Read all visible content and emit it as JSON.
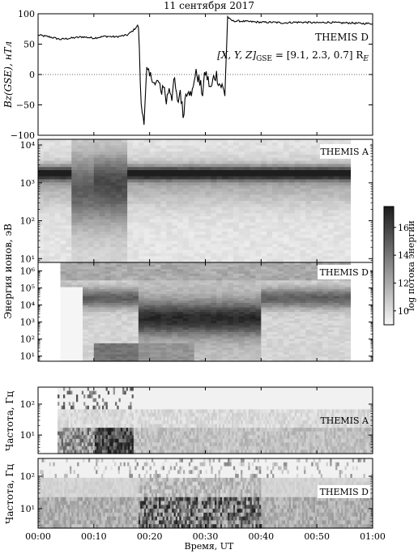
{
  "chart_data": [
    {
      "type": "line",
      "panel": "a",
      "title": "11 сентября 2017",
      "ylabel": "Bz(GSE), нТл",
      "ylim": [
        -100,
        100
      ],
      "y_ticks": [
        "100",
        "50",
        "0",
        "−50",
        "−100"
      ],
      "y_tick_values": [
        100,
        50,
        0,
        -50,
        -100
      ],
      "annotation": "THEMIS D",
      "annotation2_main": "[X, Y, Z]",
      "annotation2_sub": "GSE",
      "annotation2_rest": " = [9.1, 2.3, 0.7] R",
      "annotation2_sub2": "E",
      "zero_line": "dotted",
      "series": [
        {
          "x_minutes": [
            0,
            2,
            4,
            6,
            8,
            10,
            12,
            14,
            16,
            17,
            18,
            18.5,
            19,
            19.5,
            20,
            20.5,
            21,
            21.5,
            22,
            22.5,
            23,
            23.5,
            24,
            24.5,
            25,
            25.5,
            26,
            26.5,
            27,
            27.5,
            28,
            28.5,
            29,
            29.5,
            30,
            30.5,
            31,
            31.5,
            32,
            32.5,
            33,
            33.5,
            34,
            34.5,
            35,
            36,
            38,
            40,
            42,
            44,
            46,
            48,
            50,
            52,
            54,
            56,
            58,
            60
          ],
          "values": [
            65,
            62,
            58,
            60,
            62,
            60,
            63,
            62,
            65,
            72,
            82,
            -55,
            -72,
            5,
            -5,
            -2,
            -20,
            -10,
            -30,
            -15,
            -45,
            -20,
            -35,
            -10,
            -50,
            -25,
            -68,
            -30,
            -20,
            -40,
            -5,
            2,
            -15,
            -30,
            5,
            -10,
            -25,
            -5,
            0,
            -15,
            -20,
            -32,
            95,
            90,
            88,
            88,
            87,
            86,
            86,
            85,
            86,
            86,
            85,
            86,
            85,
            85,
            84,
            84
          ]
        }
      ]
    },
    {
      "type": "heatmap",
      "panel": "b",
      "ylabel": "Энергия ионов, эВ",
      "y_scale": "log",
      "annotation": "THEMIS A",
      "y_ticks": [
        "10⁴",
        "10³",
        "10²",
        "10¹"
      ],
      "y_tick_exponents": [
        4,
        3,
        2,
        1
      ],
      "x_range_minutes": [
        0,
        56
      ],
      "description_values": {
        "peak_energy_eV": 1700,
        "broad_interval_minutes": [
          6,
          16
        ]
      }
    },
    {
      "type": "heatmap",
      "panel": "c",
      "annotation": "THEMIS D",
      "y_scale": "log",
      "y_ticks": [
        "10⁶",
        "10⁵",
        "10⁴",
        "10³",
        "10²",
        "10¹"
      ],
      "y_tick_exponents": [
        6,
        5,
        4,
        3,
        2,
        1
      ],
      "x_range_minutes": [
        4,
        56
      ],
      "description_values": {
        "enhanced_interval_minutes": [
          18,
          40
        ]
      }
    },
    {
      "type": "heatmap",
      "panel": "d",
      "ylabel": "Частота, Гц",
      "y_scale": "log",
      "annotation": "THEMIS A",
      "y_ticks": [
        "10²",
        "10¹"
      ],
      "y_tick_exponents": [
        2,
        1
      ]
    },
    {
      "type": "heatmap",
      "panel": "e",
      "ylabel": "Частота, Гц",
      "y_scale": "log",
      "annotation": "THEMIS D",
      "y_ticks": [
        "10²",
        "10¹"
      ],
      "y_tick_exponents": [
        2,
        1
      ],
      "xlabel": "Время, UT",
      "x_ticks": [
        "00:00",
        "00:10",
        "00:20",
        "00:30",
        "00:40",
        "00:50",
        "01:00"
      ]
    }
  ],
  "colorbar": {
    "label": "log потока энергии",
    "ticks": [
      "16",
      "14",
      "12",
      "10"
    ],
    "tick_values": [
      16,
      14,
      12,
      10
    ],
    "range": [
      9,
      17.5
    ]
  }
}
